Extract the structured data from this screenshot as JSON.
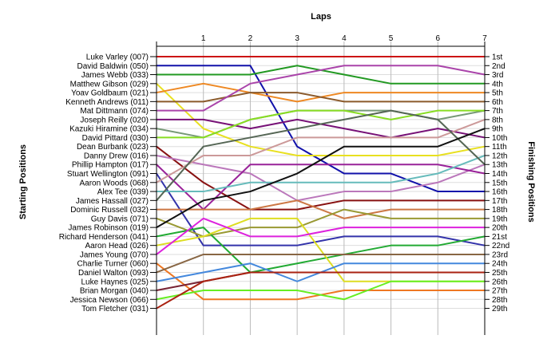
{
  "chart_data": {
    "type": "line",
    "title": "Laps",
    "ylabel": "Starting Positions",
    "ylabel_right": "Finishing Positions",
    "x": [
      0,
      1,
      2,
      3,
      4,
      5,
      6,
      7
    ],
    "x_tick_labels": [
      "1",
      "2",
      "3",
      "4",
      "5",
      "6",
      "7"
    ],
    "grid": true,
    "finishing_positions": [
      "1st",
      "2nd",
      "3rd",
      "4th",
      "5th",
      "6th",
      "7th",
      "8th",
      "9th",
      "10th",
      "11th",
      "12th",
      "13th",
      "14th",
      "15th",
      "16th",
      "17th",
      "18th",
      "19th",
      "20th",
      "21st",
      "22nd",
      "23rd",
      "24th",
      "25th",
      "26th",
      "27th",
      "28th",
      "29th"
    ],
    "series": [
      {
        "name": "Luke Varley (007)",
        "color": "#cc1111",
        "values": [
          1,
          1,
          1,
          1,
          1,
          1,
          1,
          1
        ]
      },
      {
        "name": "David Baldwin (050)",
        "color": "#1111aa",
        "values": [
          2,
          2,
          2,
          11,
          14,
          14,
          16,
          16
        ]
      },
      {
        "name": "James Webb (033)",
        "color": "#229922",
        "values": [
          3,
          3,
          3,
          2,
          3,
          4,
          4,
          4
        ]
      },
      {
        "name": "Matthew Gibson (029)",
        "color": "#e8e020",
        "values": [
          4,
          9,
          11,
          12,
          12,
          12,
          12,
          11
        ]
      },
      {
        "name": "Yoav Goldbaum (021)",
        "color": "#ee8822",
        "values": [
          5,
          4,
          5,
          6,
          5,
          5,
          5,
          5
        ]
      },
      {
        "name": "Kenneth Andrews (011)",
        "color": "#8b5a2b",
        "values": [
          6,
          6,
          5,
          5,
          6,
          6,
          6,
          6
        ]
      },
      {
        "name": "Mat Dittmann (074)",
        "color": "#aa44aa",
        "values": [
          7,
          7,
          4,
          3,
          2,
          2,
          2,
          3
        ]
      },
      {
        "name": "Joseph Reilly (020)",
        "color": "#771177",
        "values": [
          8,
          8,
          9,
          8,
          9,
          10,
          9,
          10
        ]
      },
      {
        "name": "Kazuki Hiramine (034)",
        "color": "#779977",
        "values": [
          9,
          10,
          8,
          7,
          7,
          7,
          8,
          7
        ]
      },
      {
        "name": "David Pittard (030)",
        "color": "#88dd22",
        "values": [
          10,
          10,
          8,
          7,
          7,
          8,
          7,
          7
        ]
      },
      {
        "name": "Dean Burbank (023)",
        "color": "#881111",
        "values": [
          11,
          15,
          18,
          18,
          17,
          17,
          17,
          17
        ]
      },
      {
        "name": "Danny Drew (016)",
        "color": "#bb77bb",
        "values": [
          12,
          13,
          14,
          17,
          16,
          16,
          15,
          13
        ]
      },
      {
        "name": "Phillip Hampton (017)",
        "color": "#992299",
        "values": [
          13,
          18,
          13,
          13,
          13,
          13,
          13,
          14
        ]
      },
      {
        "name": "Stuart Wellington (091)",
        "color": "#3333aa",
        "values": [
          14,
          22,
          22,
          22,
          21,
          21,
          21,
          22
        ]
      },
      {
        "name": "Aaron Woods (068)",
        "color": "#cc9999",
        "values": [
          15,
          12,
          12,
          10,
          10,
          10,
          10,
          8
        ]
      },
      {
        "name": "Alex Tee (039)",
        "color": "#66bbbb",
        "values": [
          16,
          16,
          15,
          15,
          15,
          15,
          14,
          12
        ]
      },
      {
        "name": "James Hassall (027)",
        "color": "#556655",
        "values": [
          17,
          11,
          10,
          9,
          8,
          7,
          8,
          13
        ]
      },
      {
        "name": "Dominic Russell (032)",
        "color": "#cc7744",
        "values": [
          18,
          18,
          18,
          17,
          19,
          18,
          18,
          18
        ]
      },
      {
        "name": "Guy Davis (071)",
        "color": "#999933",
        "values": [
          19,
          21,
          20,
          20,
          18,
          19,
          19,
          19
        ]
      },
      {
        "name": "James Robinson (019)",
        "color": "#111111",
        "values": [
          20,
          17,
          16,
          14,
          11,
          11,
          11,
          9
        ]
      },
      {
        "name": "Richard Henderson (041)",
        "color": "#22aa33",
        "values": [
          21,
          20,
          25,
          24,
          23,
          22,
          22,
          21
        ]
      },
      {
        "name": "Aaron Head (026)",
        "color": "#dddd22",
        "values": [
          22,
          21,
          19,
          19,
          26,
          26,
          26,
          26
        ]
      },
      {
        "name": "James Young (070)",
        "color": "#dd22dd",
        "values": [
          23,
          19,
          21,
          21,
          20,
          20,
          20,
          20
        ]
      },
      {
        "name": "Charlie Turner (060)",
        "color": "#ee7722",
        "values": [
          24,
          28,
          28,
          28,
          27,
          27,
          27,
          27
        ]
      },
      {
        "name": "Daniel Walton (093)",
        "color": "#886644",
        "values": [
          25,
          23,
          23,
          23,
          23,
          23,
          23,
          23
        ]
      },
      {
        "name": "Luke Haynes (025)",
        "color": "#4488dd",
        "values": [
          26,
          25,
          24,
          26,
          24,
          24,
          24,
          24
        ]
      },
      {
        "name": "Brian Morgan (040)",
        "color": "#772233",
        "values": [
          27,
          26,
          25,
          25,
          25,
          25,
          25,
          25
        ]
      },
      {
        "name": "Jessica Newson (066)",
        "color": "#66ee22",
        "values": [
          28,
          27,
          27,
          27,
          28,
          26,
          26,
          26
        ]
      },
      {
        "name": "Tom Fletcher (031)",
        "color": "#aa2211",
        "values": [
          29,
          26,
          25,
          25,
          25,
          25,
          25,
          25
        ]
      }
    ]
  }
}
